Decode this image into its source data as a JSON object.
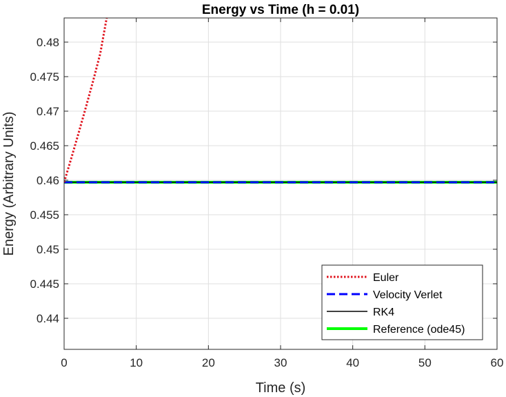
{
  "chart_data": {
    "type": "line",
    "title": "Energy vs Time (h = 0.01)",
    "xlabel": "Time (s)",
    "ylabel": "Energy (Arbitrary Units)",
    "xlim": [
      0,
      60
    ],
    "ylim": [
      0.4355,
      0.4835
    ],
    "xticks": [
      0,
      10,
      20,
      30,
      40,
      50,
      60
    ],
    "yticks": [
      0.44,
      0.445,
      0.45,
      0.455,
      0.46,
      0.465,
      0.47,
      0.475,
      0.48
    ],
    "xtick_labels": [
      "0",
      "10",
      "20",
      "30",
      "40",
      "50",
      "60"
    ],
    "ytick_labels": [
      "0.44",
      "0.445",
      "0.45",
      "0.455",
      "0.46",
      "0.465",
      "0.47",
      "0.475",
      "0.48"
    ],
    "grid": true,
    "legend_position": "bottom-right",
    "series": [
      {
        "name": "Euler",
        "color": "#e0141e",
        "style": "dotted",
        "x": [
          0,
          1,
          2,
          3,
          4,
          5,
          5.9
        ],
        "y": [
          0.4597,
          0.4632,
          0.4668,
          0.4705,
          0.4743,
          0.4783,
          0.4835
        ]
      },
      {
        "name": "Velocity Verlet",
        "color": "#0000ff",
        "style": "dashed",
        "x": [
          0,
          60
        ],
        "y": [
          0.4597,
          0.4597
        ]
      },
      {
        "name": "RK4",
        "color": "#000000",
        "style": "solid",
        "x": [
          0,
          60
        ],
        "y": [
          0.4597,
          0.4597
        ]
      },
      {
        "name": "Reference (ode45)",
        "color": "#00ff00",
        "style": "solid-thick",
        "x": [
          0,
          60
        ],
        "y": [
          0.4597,
          0.4597
        ]
      }
    ]
  }
}
